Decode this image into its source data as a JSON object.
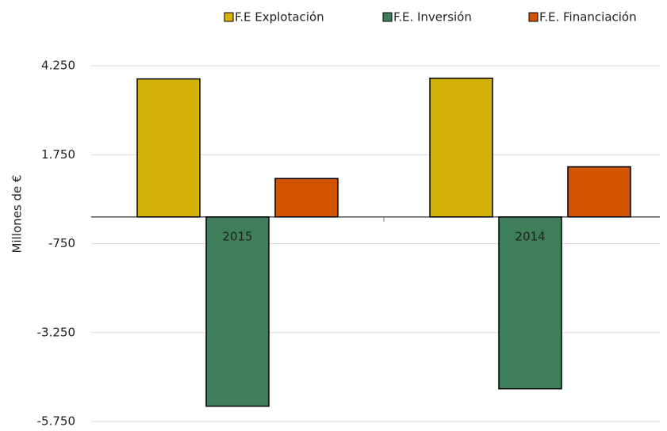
{
  "chart_data": {
    "type": "bar",
    "y_label": "Millones de €",
    "categories": [
      "2015",
      "2014"
    ],
    "series": [
      {
        "name": "F.E Explotación",
        "color": "#d4b106",
        "values": [
          3880,
          3900
        ]
      },
      {
        "name": "F.E. Inversión",
        "color": "#3e7f5a",
        "values": [
          -5320,
          -4830
        ]
      },
      {
        "name": "F.E. Financiación",
        "color": "#d35400",
        "values": [
          1080,
          1410
        ]
      }
    ],
    "ylim": [
      -5750,
      4250
    ],
    "yticks": [
      {
        "value": 4250,
        "label": "4.250"
      },
      {
        "value": 1750,
        "label": "1.750"
      },
      {
        "value": -750,
        "label": "-750"
      },
      {
        "value": -3250,
        "label": "-3.250"
      },
      {
        "value": -5750,
        "label": "-5.750"
      }
    ],
    "grid": true,
    "legend": "top"
  }
}
